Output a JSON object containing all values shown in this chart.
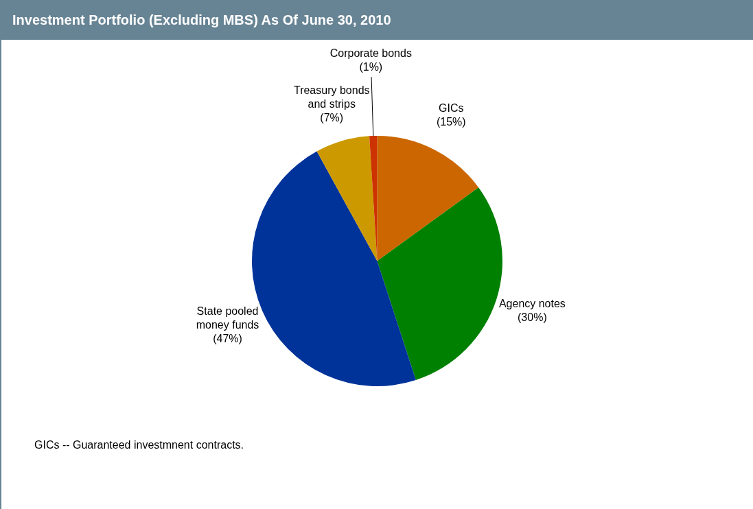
{
  "chart_data": {
    "type": "pie",
    "title": "Investment Portfolio (Excluding MBS) As Of June 30, 2010",
    "categories": [
      "GICs",
      "Agency notes",
      "State pooled money funds",
      "Treasury bonds and strips",
      "Corporate bonds"
    ],
    "values": [
      15,
      30,
      47,
      7,
      1
    ],
    "colors": [
      "#cc6600",
      "#008000",
      "#003399",
      "#cc9900",
      "#cc3300"
    ],
    "value_labels": [
      "(15%)",
      "(30%)",
      "(47%)",
      "(7%)",
      "(1%)"
    ],
    "legend": false,
    "annotations": [
      "GICs -- Guaranteed investmnent contracts."
    ]
  }
}
